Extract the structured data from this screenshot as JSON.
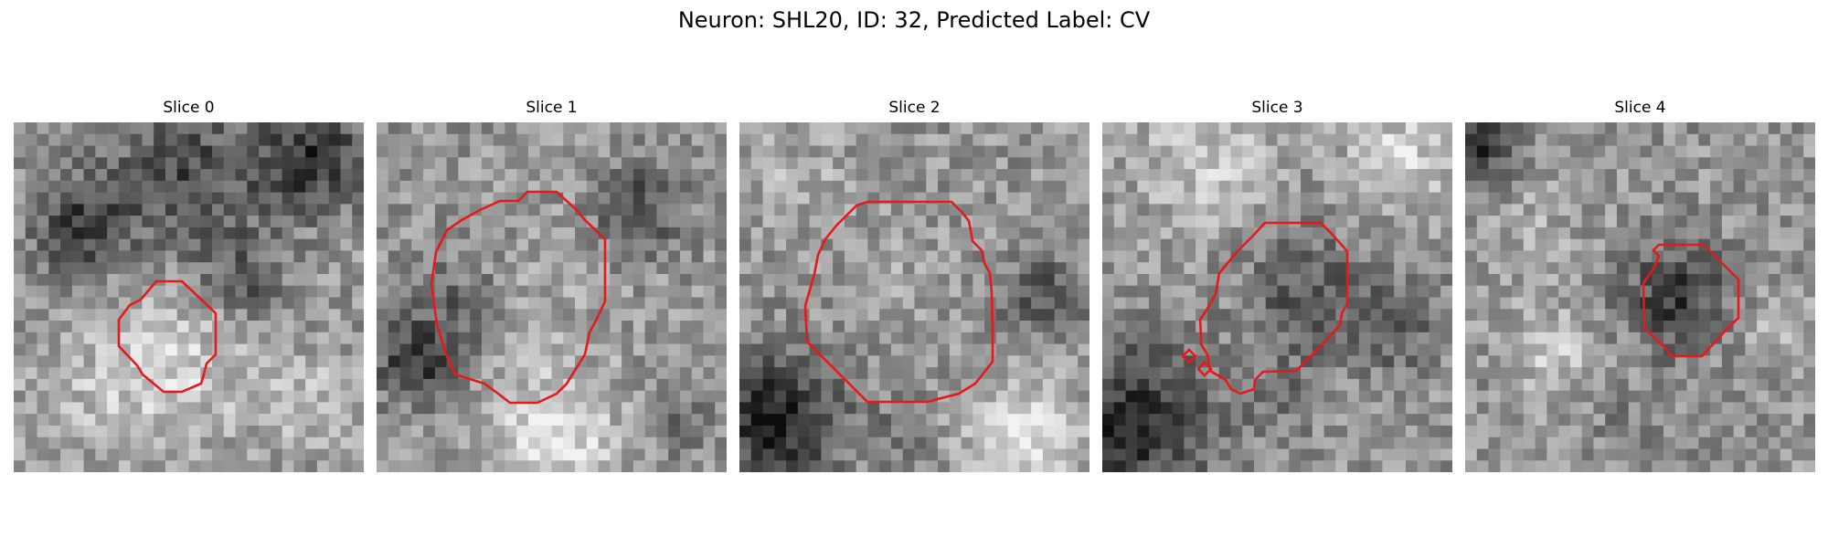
{
  "figure": {
    "title": "Neuron: SHL20, ID: 32, Predicted Label: CV",
    "outline_color": "#e41a1c"
  },
  "slices": [
    {
      "title": "Slice 0"
    },
    {
      "title": "Slice 1"
    },
    {
      "title": "Slice 2"
    },
    {
      "title": "Slice 3"
    },
    {
      "title": "Slice 4"
    }
  ]
}
